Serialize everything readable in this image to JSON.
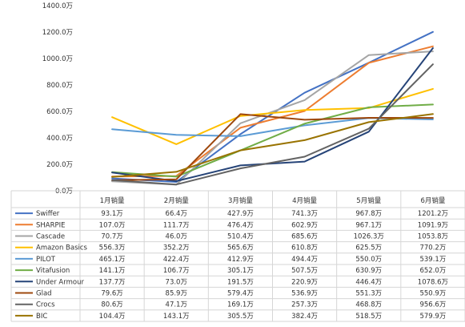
{
  "chart_data": {
    "type": "line",
    "title": "",
    "xlabel": "",
    "ylabel": "",
    "ylim": [
      0,
      1400
    ],
    "y_ticks": [
      "0.0万",
      "200.0万",
      "400.0万",
      "600.0万",
      "800.0万",
      "1000.0万",
      "1200.0万",
      "1400.0万"
    ],
    "grid": false,
    "legend": "data-table-below",
    "categories": [
      "1月销量",
      "2月销量",
      "3月销量",
      "4月销量",
      "5月销量",
      "6月销量"
    ],
    "series": [
      {
        "name": "Swiffer",
        "color": "#4472C4",
        "values": [
          93.1,
          66.4,
          427.9,
          741.3,
          967.8,
          1201.2
        ],
        "labels": [
          "93.1万",
          "66.4万",
          "427.9万",
          "741.3万",
          "967.8万",
          "1201.2万"
        ]
      },
      {
        "name": "SHARPIE",
        "color": "#ED7D31",
        "values": [
          107.0,
          111.7,
          476.4,
          602.9,
          967.1,
          1091.9
        ],
        "labels": [
          "107.0万",
          "111.7万",
          "476.4万",
          "602.9万",
          "967.1万",
          "1091.9万"
        ]
      },
      {
        "name": "Cascade",
        "color": "#A5A5A5",
        "values": [
          70.7,
          46.0,
          510.4,
          685.6,
          1026.3,
          1053.8
        ],
        "labels": [
          "70.7万",
          "46.0万",
          "510.4万",
          "685.6万",
          "1026.3万",
          "1053.8万"
        ]
      },
      {
        "name": "Amazon Basics",
        "color": "#FFC000",
        "values": [
          556.3,
          352.2,
          565.6,
          610.8,
          625.5,
          770.2
        ],
        "labels": [
          "556.3万",
          "352.2万",
          "565.6万",
          "610.8万",
          "625.5万",
          "770.2万"
        ]
      },
      {
        "name": "PILOT",
        "color": "#5B9BD5",
        "values": [
          465.1,
          422.4,
          412.9,
          494.4,
          550.0,
          539.1
        ],
        "labels": [
          "465.1万",
          "422.4万",
          "412.9万",
          "494.4万",
          "550.0万",
          "539.1万"
        ]
      },
      {
        "name": "Vitafusion",
        "color": "#70AD47",
        "values": [
          141.1,
          106.7,
          305.1,
          507.5,
          630.9,
          652.0
        ],
        "labels": [
          "141.1万",
          "106.7万",
          "305.1万",
          "507.5万",
          "630.9万",
          "652.0万"
        ]
      },
      {
        "name": "Under Armour",
        "color": "#264478",
        "values": [
          137.7,
          73.0,
          191.5,
          220.9,
          446.4,
          1078.6
        ],
        "labels": [
          "137.7万",
          "73.0万",
          "191.5万",
          "220.9万",
          "446.4万",
          "1078.6万"
        ]
      },
      {
        "name": "Glad",
        "color": "#9E480E",
        "values": [
          79.6,
          85.9,
          579.4,
          536.9,
          551.3,
          550.9
        ],
        "labels": [
          "79.6万",
          "85.9万",
          "579.4万",
          "536.9万",
          "551.3万",
          "550.9万"
        ]
      },
      {
        "name": "Crocs",
        "color": "#636363",
        "values": [
          80.6,
          47.1,
          169.1,
          257.3,
          468.8,
          956.6
        ],
        "labels": [
          "80.6万",
          "47.1万",
          "169.1万",
          "257.3万",
          "468.8万",
          "956.6万"
        ]
      },
      {
        "name": "BIC",
        "color": "#997300",
        "values": [
          104.4,
          143.1,
          305.5,
          382.4,
          518.5,
          579.9
        ],
        "labels": [
          "104.4万",
          "143.1万",
          "305.5万",
          "382.4万",
          "518.5万",
          "579.9万"
        ]
      }
    ]
  }
}
